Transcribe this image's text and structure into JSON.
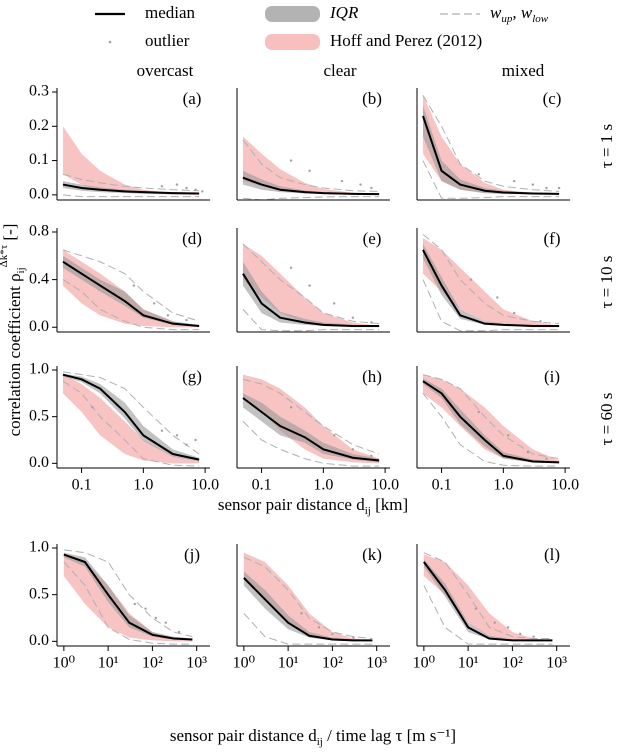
{
  "legend": [
    {
      "label": "median",
      "color": "#000000",
      "style": "line"
    },
    {
      "label": "IQR",
      "color": "#9a9a9a",
      "style": "band"
    },
    {
      "label_parts": [
        {
          "text": "w",
          "sub": "up"
        },
        {
          "text": ", "
        },
        {
          "text": "w",
          "sub": "low"
        }
      ],
      "color": "#b0b0b0",
      "style": "dashed"
    },
    {
      "label": "outlier",
      "color": "#a0a0a0",
      "style": "dot"
    },
    {
      "label": "Hoff and Perez (2012)",
      "color": "#f5a9a9",
      "style": "band"
    }
  ],
  "columns": [
    "overcast",
    "clear",
    "mixed"
  ],
  "rows": [
    "τ = 1 s",
    "τ = 10 s",
    "τ = 60 s"
  ],
  "ylabel_parts": [
    {
      "text": "correlation coefficient "
    },
    {
      "text": "ρ",
      "sub": "ij",
      "sup": "Δk*τ"
    },
    {
      "text": " [-]"
    }
  ],
  "xlabel_distance_parts": [
    {
      "text": "sensor pair distance "
    },
    {
      "text": "d",
      "sub": "ij"
    },
    {
      "text": " [km]"
    }
  ],
  "xlabel_combined_parts": [
    {
      "text": "sensor pair distance "
    },
    {
      "text": "d",
      "sub": "ij"
    },
    {
      "text": " / time lag τ [m s⁻¹]"
    }
  ],
  "chart_data": [
    {
      "type": "line",
      "label": "(a)",
      "log_x": true,
      "xlim": [
        0.04,
        12
      ],
      "ylim": [
        -0.015,
        0.3
      ],
      "yticks": [
        {
          "value": 0,
          "label": "0.0"
        },
        0.1,
        0.2,
        0.3
      ],
      "x": [
        0.05,
        0.1,
        0.2,
        0.5,
        1,
        3,
        8
      ],
      "median": [
        0.03,
        0.02,
        0.015,
        0.01,
        0.008,
        0.005,
        0.004
      ],
      "iqr_low": [
        0.02,
        0.012,
        0.008,
        0.005,
        0.004,
        0.002,
        0.001
      ],
      "iqr_high": [
        0.04,
        0.03,
        0.022,
        0.015,
        0.012,
        0.008,
        0.006
      ],
      "w_up": [
        0.06,
        0.045,
        0.035,
        0.025,
        0.02,
        0.015,
        0.012
      ],
      "w_low": [
        0,
        -0.005,
        -0.005,
        -0.005,
        -0.005,
        -0.005,
        -0.005
      ],
      "hoff_low": [
        0.06,
        0.03,
        0.015,
        0.006,
        0.003,
        0.001,
        0
      ],
      "hoff_high": [
        0.2,
        0.12,
        0.07,
        0.03,
        0.015,
        0.005,
        0.002
      ],
      "outliers_x": [
        2,
        3.5,
        5,
        7,
        9
      ],
      "outliers_y": [
        0.025,
        0.03,
        0.02,
        0.015,
        0.01
      ]
    },
    {
      "type": "line",
      "label": "(b)",
      "log_x": true,
      "xlim": [
        0.04,
        12
      ],
      "ylim": [
        -0.015,
        0.3
      ],
      "x": [
        0.05,
        0.1,
        0.2,
        0.5,
        1,
        3,
        8
      ],
      "median": [
        0.05,
        0.03,
        0.015,
        0.008,
        0.005,
        0.003,
        0.002
      ],
      "iqr_low": [
        0.03,
        0.015,
        0.008,
        0.004,
        0.002,
        0.001,
        0.001
      ],
      "iqr_high": [
        0.07,
        0.045,
        0.025,
        0.013,
        0.008,
        0.005,
        0.004
      ],
      "w_up": [
        0.16,
        0.09,
        0.05,
        0.03,
        0.02,
        0.012,
        0.01
      ],
      "w_low": [
        -0.01,
        -0.015,
        -0.01,
        -0.008,
        -0.006,
        -0.005,
        -0.005
      ],
      "hoff_low": [
        0.04,
        0.025,
        0.012,
        0.005,
        0.002,
        0.001,
        0
      ],
      "hoff_high": [
        0.17,
        0.12,
        0.075,
        0.035,
        0.017,
        0.006,
        0.002
      ],
      "outliers_x": [
        0.3,
        0.6,
        2,
        4,
        6
      ],
      "outliers_y": [
        0.1,
        0.07,
        0.04,
        0.03,
        0.02
      ]
    },
    {
      "type": "line",
      "label": "(c)",
      "log_x": true,
      "xlim": [
        0.04,
        12
      ],
      "ylim": [
        -0.015,
        0.3
      ],
      "x": [
        0.05,
        0.1,
        0.2,
        0.5,
        1,
        3,
        8
      ],
      "median": [
        0.23,
        0.07,
        0.03,
        0.012,
        0.007,
        0.004,
        0.003
      ],
      "iqr_low": [
        0.17,
        0.04,
        0.015,
        0.005,
        0.003,
        0.002,
        0.001
      ],
      "iqr_high": [
        0.26,
        0.1,
        0.045,
        0.02,
        0.012,
        0.007,
        0.005
      ],
      "w_up": [
        0.29,
        0.2,
        0.09,
        0.04,
        0.025,
        0.015,
        0.01
      ],
      "w_low": [
        0.1,
        -0.01,
        -0.01,
        -0.008,
        -0.005,
        -0.005,
        -0.005
      ],
      "hoff_low": [
        0.12,
        0.04,
        0.015,
        0.005,
        0.002,
        0.001,
        0
      ],
      "hoff_high": [
        0.29,
        0.17,
        0.09,
        0.035,
        0.015,
        0.005,
        0.002
      ],
      "outliers_x": [
        0.4,
        1.5,
        3,
        5,
        8
      ],
      "outliers_y": [
        0.06,
        0.04,
        0.03,
        0.02,
        0.02
      ]
    },
    {
      "type": "line",
      "label": "(d)",
      "log_x": true,
      "xlim": [
        0.04,
        12
      ],
      "ylim": [
        -0.04,
        0.8
      ],
      "yticks": [
        {
          "value": 0,
          "label": "0.0"
        },
        0.4,
        0.8
      ],
      "x": [
        0.05,
        0.1,
        0.2,
        0.5,
        1,
        3,
        8
      ],
      "median": [
        0.55,
        0.45,
        0.35,
        0.22,
        0.1,
        0.03,
        0.01
      ],
      "iqr_low": [
        0.5,
        0.4,
        0.3,
        0.18,
        0.08,
        0.02,
        0.005
      ],
      "iqr_high": [
        0.6,
        0.5,
        0.4,
        0.3,
        0.15,
        0.05,
        0.02
      ],
      "w_up": [
        0.65,
        0.6,
        0.55,
        0.45,
        0.3,
        0.12,
        0.05
      ],
      "w_low": [
        0.4,
        0.3,
        0.15,
        0.05,
        0,
        -0.02,
        -0.02
      ],
      "hoff_low": [
        0.35,
        0.2,
        0.1,
        0.03,
        0.01,
        0,
        0
      ],
      "hoff_high": [
        0.65,
        0.55,
        0.45,
        0.3,
        0.15,
        0.05,
        0.01
      ],
      "outliers_x": [
        0.7,
        1.5,
        2.5,
        5
      ],
      "outliers_y": [
        0.35,
        0.2,
        0.1,
        0.06
      ]
    },
    {
      "type": "line",
      "label": "(e)",
      "log_x": true,
      "xlim": [
        0.04,
        12
      ],
      "ylim": [
        -0.04,
        0.8
      ],
      "x": [
        0.05,
        0.1,
        0.2,
        0.5,
        1,
        3,
        8
      ],
      "median": [
        0.45,
        0.2,
        0.08,
        0.04,
        0.02,
        0.01,
        0.01
      ],
      "iqr_low": [
        0.35,
        0.12,
        0.04,
        0.02,
        0.01,
        0.005,
        0.003
      ],
      "iqr_high": [
        0.55,
        0.3,
        0.13,
        0.07,
        0.04,
        0.02,
        0.015
      ],
      "w_up": [
        0.7,
        0.55,
        0.4,
        0.25,
        0.12,
        0.05,
        0.03
      ],
      "w_low": [
        0.15,
        -0.02,
        -0.03,
        -0.03,
        -0.02,
        -0.02,
        -0.02
      ],
      "hoff_low": [
        0.4,
        0.25,
        0.12,
        0.04,
        0.01,
        0,
        0
      ],
      "hoff_high": [
        0.7,
        0.6,
        0.45,
        0.25,
        0.12,
        0.04,
        0.01
      ],
      "outliers_x": [
        0.3,
        0.6,
        1.5,
        3,
        6
      ],
      "outliers_y": [
        0.5,
        0.35,
        0.2,
        0.08,
        0.04
      ]
    },
    {
      "type": "line",
      "label": "(f)",
      "log_x": true,
      "xlim": [
        0.04,
        12
      ],
      "ylim": [
        -0.04,
        0.8
      ],
      "x": [
        0.05,
        0.1,
        0.2,
        0.5,
        1,
        3,
        8
      ],
      "median": [
        0.65,
        0.35,
        0.1,
        0.03,
        0.02,
        0.01,
        0.01
      ],
      "iqr_low": [
        0.58,
        0.27,
        0.07,
        0.02,
        0.01,
        0.005,
        0.003
      ],
      "iqr_high": [
        0.7,
        0.42,
        0.15,
        0.05,
        0.03,
        0.02,
        0.015
      ],
      "w_up": [
        0.78,
        0.65,
        0.4,
        0.2,
        0.1,
        0.05,
        0.03
      ],
      "w_low": [
        0.4,
        0.05,
        -0.03,
        -0.03,
        -0.02,
        -0.02,
        -0.02
      ],
      "hoff_low": [
        0.45,
        0.3,
        0.15,
        0.05,
        0.015,
        0,
        0
      ],
      "hoff_high": [
        0.75,
        0.65,
        0.5,
        0.3,
        0.15,
        0.05,
        0.01
      ],
      "outliers_x": [
        0.3,
        0.8,
        1.5,
        4
      ],
      "outliers_y": [
        0.4,
        0.25,
        0.12,
        0.05
      ]
    },
    {
      "type": "line",
      "label": "(g)",
      "log_x": true,
      "xlim": [
        0.04,
        12
      ],
      "ylim": [
        -0.05,
        1.0
      ],
      "yticks": [
        {
          "value": 0,
          "label": "0.0"
        },
        0.5,
        {
          "value": 1,
          "label": "1.0"
        }
      ],
      "xticks": [
        0.1,
        {
          "value": 1,
          "label": "1.0"
        },
        {
          "value": 10,
          "label": "10.0"
        }
      ],
      "x": [
        0.05,
        0.1,
        0.2,
        0.5,
        1,
        3,
        8
      ],
      "median": [
        0.95,
        0.9,
        0.8,
        0.55,
        0.3,
        0.1,
        0.04
      ],
      "iqr_low": [
        0.93,
        0.87,
        0.75,
        0.48,
        0.24,
        0.07,
        0.02
      ],
      "iqr_high": [
        0.96,
        0.93,
        0.85,
        0.65,
        0.4,
        0.15,
        0.06
      ],
      "w_up": [
        0.98,
        0.95,
        0.92,
        0.8,
        0.6,
        0.3,
        0.1
      ],
      "w_low": [
        0.88,
        0.75,
        0.5,
        0.25,
        0.05,
        -0.02,
        -0.03
      ],
      "hoff_low": [
        0.75,
        0.55,
        0.3,
        0.1,
        0.03,
        0,
        0
      ],
      "hoff_high": [
        0.95,
        0.85,
        0.7,
        0.45,
        0.25,
        0.08,
        0.02
      ],
      "outliers_x": [
        0.15,
        2,
        3.5,
        5,
        7
      ],
      "outliers_y": [
        0.6,
        0.35,
        0.3,
        0.2,
        0.25
      ]
    },
    {
      "type": "line",
      "label": "(h)",
      "log_x": true,
      "xlim": [
        0.04,
        12
      ],
      "ylim": [
        -0.05,
        1.0
      ],
      "xticks": [
        0.1,
        {
          "value": 1,
          "label": "1.0"
        },
        {
          "value": 10,
          "label": "10.0"
        }
      ],
      "x": [
        0.05,
        0.1,
        0.2,
        0.5,
        1,
        3,
        8
      ],
      "median": [
        0.7,
        0.55,
        0.4,
        0.28,
        0.15,
        0.06,
        0.03
      ],
      "iqr_low": [
        0.6,
        0.45,
        0.3,
        0.22,
        0.1,
        0.04,
        0.01
      ],
      "iqr_high": [
        0.75,
        0.65,
        0.5,
        0.35,
        0.22,
        0.1,
        0.05
      ],
      "w_up": [
        0.9,
        0.85,
        0.75,
        0.55,
        0.4,
        0.2,
        0.1
      ],
      "w_low": [
        0.45,
        0.25,
        0.15,
        0.05,
        0,
        -0.03,
        -0.03
      ],
      "hoff_low": [
        0.7,
        0.55,
        0.35,
        0.15,
        0.05,
        0.01,
        0
      ],
      "hoff_high": [
        0.95,
        0.9,
        0.8,
        0.6,
        0.4,
        0.15,
        0.05
      ],
      "outliers_x": [
        0.3,
        1.5,
        3,
        6
      ],
      "outliers_y": [
        0.6,
        0.3,
        0.15,
        0.08
      ]
    },
    {
      "type": "line",
      "label": "(i)",
      "log_x": true,
      "xlim": [
        0.04,
        12
      ],
      "ylim": [
        -0.05,
        1.0
      ],
      "xticks": [
        0.1,
        {
          "value": 1,
          "label": "1.0"
        },
        {
          "value": 10,
          "label": "10.0"
        }
      ],
      "x": [
        0.05,
        0.1,
        0.2,
        0.5,
        1,
        3,
        8
      ],
      "median": [
        0.88,
        0.75,
        0.5,
        0.25,
        0.08,
        0.02,
        0.01
      ],
      "iqr_low": [
        0.85,
        0.7,
        0.42,
        0.18,
        0.05,
        0.01,
        0.005
      ],
      "iqr_high": [
        0.91,
        0.8,
        0.58,
        0.3,
        0.12,
        0.04,
        0.02
      ],
      "w_up": [
        0.95,
        0.9,
        0.8,
        0.5,
        0.3,
        0.1,
        0.05
      ],
      "w_low": [
        0.75,
        0.5,
        0.2,
        0.02,
        -0.02,
        -0.03,
        -0.03
      ],
      "hoff_low": [
        0.75,
        0.6,
        0.4,
        0.15,
        0.05,
        0.01,
        0
      ],
      "hoff_high": [
        0.95,
        0.9,
        0.8,
        0.6,
        0.4,
        0.15,
        0.03
      ],
      "outliers_x": [
        0.4,
        1.2,
        2.5,
        5
      ],
      "outliers_y": [
        0.55,
        0.3,
        0.12,
        0.05
      ]
    },
    {
      "type": "line",
      "label": "(j)",
      "log_x": true,
      "xlim": [
        0.7,
        2000
      ],
      "ylim": [
        -0.05,
        1.0
      ],
      "yticks": [
        {
          "value": 0,
          "label": "0.0"
        },
        0.5,
        {
          "value": 1,
          "label": "1.0"
        }
      ],
      "xticks": [
        {
          "value": 1,
          "label": "10⁰"
        },
        {
          "value": 10,
          "label": "10¹"
        },
        {
          "value": 100,
          "label": "10²"
        },
        {
          "value": 1000,
          "label": "10³"
        }
      ],
      "x": [
        1,
        3,
        10,
        30,
        100,
        300,
        800
      ],
      "median": [
        0.93,
        0.85,
        0.5,
        0.2,
        0.07,
        0.03,
        0.02
      ],
      "iqr_low": [
        0.9,
        0.8,
        0.42,
        0.15,
        0.05,
        0.02,
        0.01
      ],
      "iqr_high": [
        0.95,
        0.9,
        0.6,
        0.28,
        0.1,
        0.05,
        0.03
      ],
      "w_up": [
        0.98,
        0.95,
        0.85,
        0.5,
        0.25,
        0.1,
        0.05
      ],
      "w_low": [
        0.85,
        0.6,
        0.15,
        0.02,
        -0.02,
        -0.03,
        -0.03
      ],
      "hoff_low": [
        0.7,
        0.4,
        0.15,
        0.04,
        0.01,
        0,
        0
      ],
      "hoff_high": [
        0.93,
        0.85,
        0.6,
        0.3,
        0.1,
        0.03,
        0.01
      ],
      "outliers_x": [
        40,
        70,
        120,
        200,
        400
      ],
      "outliers_y": [
        0.4,
        0.35,
        0.25,
        0.2,
        0.1
      ]
    },
    {
      "type": "line",
      "label": "(k)",
      "log_x": true,
      "xlim": [
        0.7,
        2000
      ],
      "ylim": [
        -0.05,
        1.0
      ],
      "xticks": [
        {
          "value": 1,
          "label": "10⁰"
        },
        {
          "value": 10,
          "label": "10¹"
        },
        {
          "value": 100,
          "label": "10²"
        },
        {
          "value": 1000,
          "label": "10³"
        }
      ],
      "x": [
        1,
        3,
        10,
        30,
        100,
        300,
        800
      ],
      "median": [
        0.68,
        0.45,
        0.2,
        0.06,
        0.02,
        0.01,
        0.01
      ],
      "iqr_low": [
        0.6,
        0.35,
        0.13,
        0.04,
        0.01,
        0.005,
        0.003
      ],
      "iqr_high": [
        0.75,
        0.55,
        0.28,
        0.1,
        0.04,
        0.02,
        0.015
      ],
      "w_up": [
        0.9,
        0.8,
        0.55,
        0.25,
        0.1,
        0.05,
        0.03
      ],
      "w_low": [
        0.3,
        0.05,
        -0.03,
        -0.03,
        -0.03,
        -0.03,
        -0.03
      ],
      "hoff_low": [
        0.7,
        0.45,
        0.2,
        0.05,
        0.01,
        0,
        0
      ],
      "hoff_high": [
        0.95,
        0.85,
        0.6,
        0.3,
        0.1,
        0.03,
        0.01
      ],
      "outliers_x": [
        20,
        50,
        100,
        300
      ],
      "outliers_y": [
        0.3,
        0.15,
        0.08,
        0.04
      ]
    },
    {
      "type": "line",
      "label": "(l)",
      "log_x": true,
      "xlim": [
        0.7,
        2000
      ],
      "ylim": [
        -0.05,
        1.0
      ],
      "xticks": [
        {
          "value": 1,
          "label": "10⁰"
        },
        {
          "value": 10,
          "label": "10¹"
        },
        {
          "value": 100,
          "label": "10²"
        },
        {
          "value": 1000,
          "label": "10³"
        }
      ],
      "x": [
        1,
        3,
        10,
        30,
        100,
        300,
        800
      ],
      "median": [
        0.85,
        0.55,
        0.15,
        0.03,
        0.01,
        0.01,
        0.01
      ],
      "iqr_low": [
        0.8,
        0.48,
        0.1,
        0.02,
        0.005,
        0.003,
        0.003
      ],
      "iqr_high": [
        0.88,
        0.62,
        0.2,
        0.06,
        0.02,
        0.015,
        0.015
      ],
      "w_up": [
        0.95,
        0.85,
        0.5,
        0.15,
        0.05,
        0.03,
        0.03
      ],
      "w_low": [
        0.6,
        0.15,
        -0.03,
        -0.03,
        -0.03,
        -0.03,
        -0.03
      ],
      "hoff_low": [
        0.7,
        0.5,
        0.2,
        0.05,
        0.01,
        0,
        0
      ],
      "hoff_high": [
        0.93,
        0.85,
        0.6,
        0.3,
        0.1,
        0.03,
        0.01
      ],
      "outliers_x": [
        15,
        40,
        80,
        150,
        300
      ],
      "outliers_y": [
        0.35,
        0.2,
        0.15,
        0.08,
        0.05
      ]
    }
  ]
}
